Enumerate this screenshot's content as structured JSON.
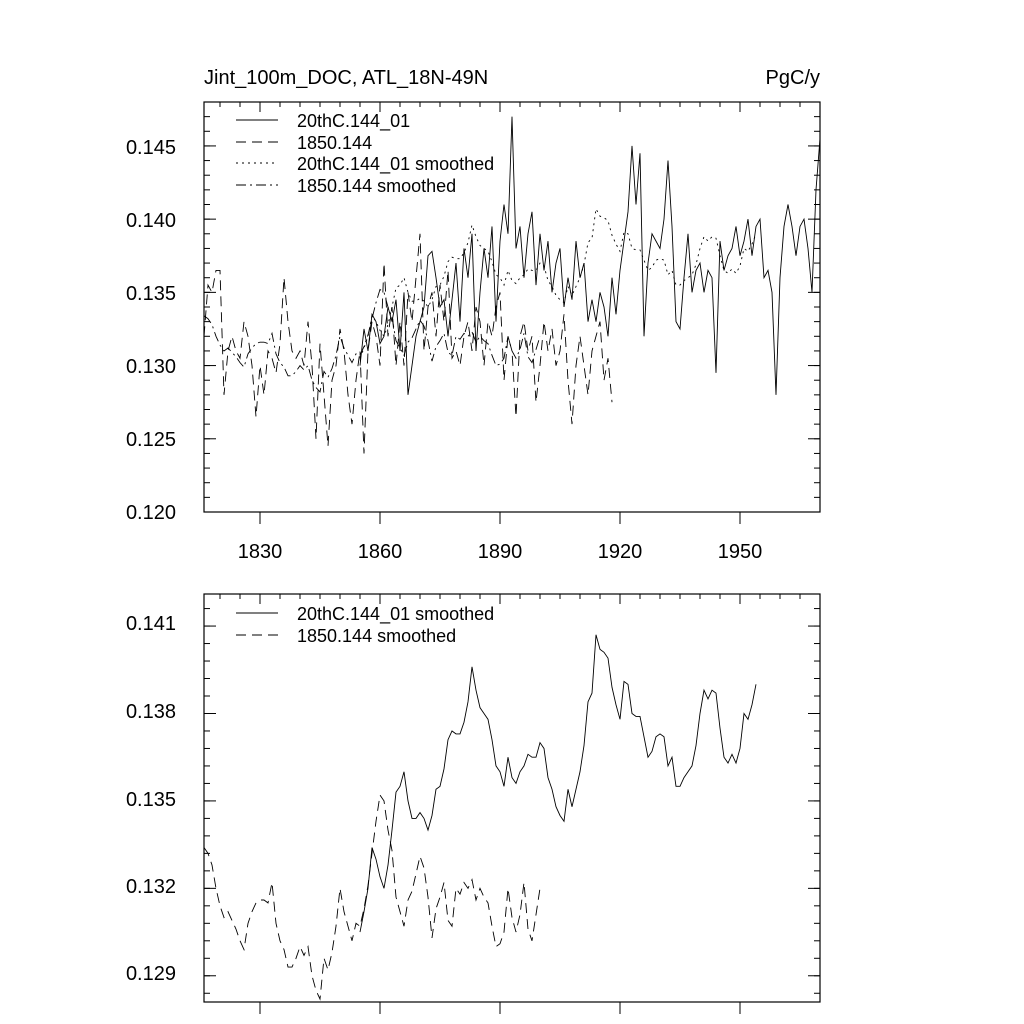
{
  "chart_data": [
    {
      "type": "line",
      "title_left": "Jint_100m_DOC, ATL_18N-49N",
      "title_right": "PgC/y",
      "xlim": [
        1816,
        1970
      ],
      "ylim": [
        0.12,
        0.148
      ],
      "xticks": [
        1830,
        1860,
        1890,
        1920,
        1950
      ],
      "xtick_labels": [
        "1830",
        "1860",
        "1890",
        "1920",
        "1950"
      ],
      "yticks": [
        0.12,
        0.125,
        0.13,
        0.135,
        0.14,
        0.145
      ],
      "ytick_labels": [
        "0.120",
        "0.125",
        "0.130",
        "0.135",
        "0.140",
        "0.145"
      ],
      "legend_position": "top-left",
      "series": [
        {
          "name": "20thC.144_01",
          "style": "solid",
          "start_year": 1855,
          "values": [
            0.13,
            0.1325,
            0.131,
            0.1335,
            0.133,
            0.1315,
            0.132,
            0.134,
            0.133,
            0.1345,
            0.131,
            0.135,
            0.128,
            0.13,
            0.132,
            0.133,
            0.134,
            0.1375,
            0.1378,
            0.136,
            0.134,
            0.1345,
            0.132,
            0.1345,
            0.137,
            0.133,
            0.138,
            0.136,
            0.139,
            0.131,
            0.135,
            0.138,
            0.136,
            0.1395,
            0.133,
            0.1385,
            0.141,
            0.139,
            0.147,
            0.138,
            0.1395,
            0.136,
            0.139,
            0.1405,
            0.1355,
            0.139,
            0.1365,
            0.1385,
            0.135,
            0.137,
            0.138,
            0.134,
            0.136,
            0.1345,
            0.1385,
            0.136,
            0.137,
            0.133,
            0.1345,
            0.133,
            0.135,
            0.134,
            0.132,
            0.136,
            0.1335,
            0.1365,
            0.1385,
            0.1405,
            0.145,
            0.141,
            0.1445,
            0.132,
            0.137,
            0.139,
            0.1385,
            0.138,
            0.14,
            0.144,
            0.1395,
            0.133,
            0.1325,
            0.136,
            0.139,
            0.135,
            0.1365,
            0.137,
            0.135,
            0.1365,
            0.136,
            0.1295,
            0.1385,
            0.1365,
            0.1375,
            0.138,
            0.1395,
            0.1375,
            0.1385,
            0.14,
            0.1375,
            0.1395,
            0.14,
            0.136,
            0.1365,
            0.135,
            0.128,
            0.136,
            0.1395,
            0.141,
            0.1395,
            0.1375,
            0.1395,
            0.14,
            0.138,
            0.135,
            0.142,
            0.1455
          ]
        },
        {
          "name": "1850.144",
          "style": "dash",
          "start_year": 1816,
          "values": [
            0.132,
            0.1355,
            0.135,
            0.1365,
            0.1365,
            0.128,
            0.131,
            0.132,
            0.131,
            0.1305,
            0.133,
            0.132,
            0.13,
            0.1265,
            0.13,
            0.128,
            0.131,
            0.1305,
            0.1295,
            0.1315,
            0.136,
            0.133,
            0.131,
            0.1305,
            0.131,
            0.13,
            0.133,
            0.13,
            0.125,
            0.1315,
            0.128,
            0.1245,
            0.129,
            0.13,
            0.1325,
            0.131,
            0.128,
            0.126,
            0.129,
            0.131,
            0.124,
            0.131,
            0.133,
            0.132,
            0.13,
            0.137,
            0.132,
            0.134,
            0.13,
            0.133,
            0.13,
            0.135,
            0.133,
            0.136,
            0.139,
            0.131,
            0.134,
            0.135,
            0.132,
            0.1355,
            0.133,
            0.1365,
            0.1305,
            0.131,
            0.13,
            0.132,
            0.133,
            0.131,
            0.134,
            0.133,
            0.13,
            0.133,
            0.132,
            0.134,
            0.135,
            0.129,
            0.132,
            0.131,
            0.1265,
            0.132,
            0.133,
            0.131,
            0.132,
            0.1275,
            0.13,
            0.133,
            0.131,
            0.1325,
            0.13,
            0.131,
            0.1335,
            0.129,
            0.126,
            0.13,
            0.132,
            0.13,
            0.128,
            0.131,
            0.132,
            0.133,
            0.129,
            0.1305,
            0.1275
          ]
        },
        {
          "name": "20thC.144_01 smoothed",
          "style": "dot",
          "start_year": 1855,
          "values": [
            0.1305,
            0.1312,
            0.132,
            0.1334,
            0.133,
            0.1324,
            0.132,
            0.1328,
            0.134,
            0.1353,
            0.1355,
            0.136,
            0.135,
            0.1344,
            0.1344,
            0.1346,
            0.1344,
            0.134,
            0.1345,
            0.1354,
            0.1355,
            0.1361,
            0.1371,
            0.1374,
            0.1373,
            0.1373,
            0.1377,
            0.1384,
            0.1396,
            0.1388,
            0.1382,
            0.138,
            0.1378,
            0.1371,
            0.1362,
            0.136,
            0.1355,
            0.1365,
            0.1358,
            0.1356,
            0.136,
            0.1362,
            0.1366,
            0.1365,
            0.1365,
            0.137,
            0.1368,
            0.1358,
            0.1354,
            0.1348,
            0.1345,
            0.1343,
            0.1354,
            0.1348,
            0.1354,
            0.136,
            0.1369,
            0.1384,
            0.1387,
            0.1407,
            0.1402,
            0.1401,
            0.1399,
            0.1389,
            0.1383,
            0.1378,
            0.1391,
            0.139,
            0.138,
            0.1379,
            0.1379,
            0.1372,
            0.1365,
            0.1367,
            0.1372,
            0.1373,
            0.1372,
            0.1362,
            0.1365,
            0.1355,
            0.1355,
            0.1358,
            0.136,
            0.1362,
            0.1369,
            0.138,
            0.1388,
            0.1385,
            0.1388,
            0.1387,
            0.1375,
            0.1365,
            0.1363,
            0.1366,
            0.1363,
            0.1368,
            0.138,
            0.1378,
            0.1383,
            0.139
          ]
        },
        {
          "name": "1850.144 smoothed",
          "style": "dashdot",
          "start_year": 1816,
          "values": [
            0.1334,
            0.1332,
            0.1328,
            0.132,
            0.1314,
            0.131,
            0.1312,
            0.1309,
            0.1306,
            0.1302,
            0.1299,
            0.1308,
            0.1312,
            0.1315,
            0.1316,
            0.1316,
            0.1315,
            0.1322,
            0.1308,
            0.1302,
            0.1299,
            0.1293,
            0.1293,
            0.1296,
            0.13,
            0.1297,
            0.13,
            0.129,
            0.1285,
            0.1282,
            0.1296,
            0.1292,
            0.1298,
            0.1307,
            0.132,
            0.1312,
            0.1307,
            0.1302,
            0.1308,
            0.1307,
            0.1313,
            0.1321,
            0.1332,
            0.1343,
            0.1352,
            0.135,
            0.134,
            0.1333,
            0.1317,
            0.1312,
            0.1307,
            0.1316,
            0.1319,
            0.1325,
            0.1331,
            0.1327,
            0.1317,
            0.1303,
            0.1313,
            0.1317,
            0.1322,
            0.1309,
            0.1307,
            0.132,
            0.1318,
            0.1322,
            0.132,
            0.1323,
            0.1316,
            0.132,
            0.1317,
            0.1315,
            0.1307,
            0.13,
            0.1301,
            0.1305,
            0.132,
            0.131,
            0.1305,
            0.1311,
            0.1322,
            0.1306,
            0.1302,
            0.1311,
            0.132
          ]
        }
      ]
    },
    {
      "type": "line",
      "xlim": [
        1816,
        1970
      ],
      "ylim": [
        0.1281,
        0.1421
      ],
      "xticks": [
        1830,
        1860,
        1890,
        1920,
        1950
      ],
      "yticks": [
        0.129,
        0.132,
        0.135,
        0.138,
        0.141
      ],
      "ytick_labels": [
        "0.129",
        "0.132",
        "0.135",
        "0.138",
        "0.141"
      ],
      "legend_position": "top-left",
      "series": [
        {
          "name": "20thC.144_01 smoothed",
          "style": "solid",
          "start_year": 1855,
          "values": [
            0.1305,
            0.1312,
            0.132,
            0.1334,
            0.133,
            0.1324,
            0.132,
            0.1328,
            0.134,
            0.1353,
            0.1355,
            0.136,
            0.135,
            0.1344,
            0.1344,
            0.1346,
            0.1344,
            0.134,
            0.1345,
            0.1354,
            0.1355,
            0.1361,
            0.1371,
            0.1374,
            0.1373,
            0.1373,
            0.1377,
            0.1384,
            0.1396,
            0.1388,
            0.1382,
            0.138,
            0.1378,
            0.1371,
            0.1362,
            0.136,
            0.1355,
            0.1365,
            0.1358,
            0.1356,
            0.136,
            0.1362,
            0.1366,
            0.1365,
            0.1365,
            0.137,
            0.1368,
            0.1358,
            0.1354,
            0.1348,
            0.1345,
            0.1343,
            0.1354,
            0.1348,
            0.1354,
            0.136,
            0.1369,
            0.1384,
            0.1387,
            0.1407,
            0.1402,
            0.1401,
            0.1399,
            0.1389,
            0.1383,
            0.1378,
            0.1391,
            0.139,
            0.138,
            0.1379,
            0.1379,
            0.1372,
            0.1365,
            0.1367,
            0.1372,
            0.1373,
            0.1372,
            0.1362,
            0.1365,
            0.1355,
            0.1355,
            0.1358,
            0.136,
            0.1362,
            0.1369,
            0.138,
            0.1388,
            0.1385,
            0.1388,
            0.1387,
            0.1375,
            0.1365,
            0.1363,
            0.1366,
            0.1363,
            0.1368,
            0.138,
            0.1378,
            0.1383,
            0.139
          ]
        },
        {
          "name": "1850.144 smoothed",
          "style": "dash",
          "start_year": 1816,
          "values": [
            0.1334,
            0.1332,
            0.1328,
            0.132,
            0.1314,
            0.131,
            0.1312,
            0.1309,
            0.1306,
            0.1302,
            0.1299,
            0.1308,
            0.1312,
            0.1315,
            0.1316,
            0.1316,
            0.1315,
            0.1322,
            0.1308,
            0.1302,
            0.1299,
            0.1293,
            0.1293,
            0.1296,
            0.13,
            0.1297,
            0.13,
            0.129,
            0.1285,
            0.1282,
            0.1296,
            0.1292,
            0.1298,
            0.1307,
            0.132,
            0.1312,
            0.1307,
            0.1302,
            0.1308,
            0.1307,
            0.1313,
            0.1321,
            0.1332,
            0.1343,
            0.1352,
            0.135,
            0.134,
            0.1333,
            0.1317,
            0.1312,
            0.1307,
            0.1316,
            0.1319,
            0.1325,
            0.1331,
            0.1327,
            0.1317,
            0.1303,
            0.1313,
            0.1317,
            0.1322,
            0.1309,
            0.1307,
            0.132,
            0.1318,
            0.1322,
            0.132,
            0.1323,
            0.1316,
            0.132,
            0.1317,
            0.1315,
            0.1307,
            0.13,
            0.1301,
            0.1305,
            0.132,
            0.131,
            0.1305,
            0.1311,
            0.1322,
            0.1306,
            0.1302,
            0.1311,
            0.132
          ]
        }
      ]
    }
  ]
}
